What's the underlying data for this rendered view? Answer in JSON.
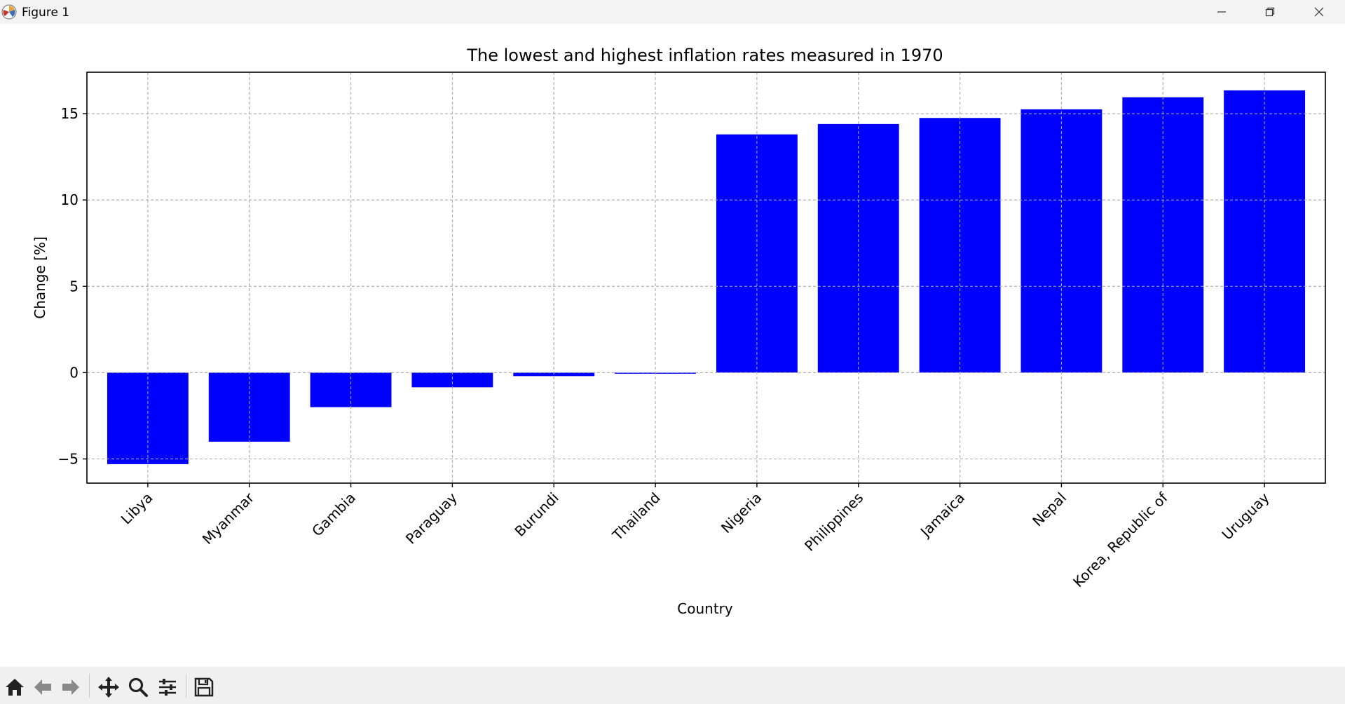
{
  "window": {
    "title": "Figure 1",
    "icons": [
      "matplotlib-logo-icon",
      "minimize-icon",
      "restore-icon",
      "close-icon"
    ]
  },
  "toolbar": {
    "buttons": [
      "home-icon",
      "back-arrow-icon",
      "forward-arrow-icon",
      "pan-icon",
      "zoom-icon",
      "configure-subplots-icon",
      "save-icon"
    ]
  },
  "colors": {
    "bar": "#0000ff",
    "grid": "#b0b0b0",
    "titlebar": "#f3f3f3",
    "toolbar": "#f0f0f0"
  },
  "chart_data": {
    "type": "bar",
    "title": "The lowest and highest inflation rates measured in 1970",
    "xlabel": "Country",
    "ylabel": "Change [%]",
    "categories": [
      "Libya",
      "Myanmar",
      "Gambia",
      "Paraguay",
      "Burundi",
      "Thailand",
      "Nigeria",
      "Philippines",
      "Jamaica",
      "Nepal",
      "Korea, Republic of",
      "Uruguay"
    ],
    "values": [
      -5.3,
      -4.0,
      -2.0,
      -0.85,
      -0.2,
      -0.05,
      13.8,
      14.4,
      14.75,
      15.25,
      15.95,
      16.35
    ],
    "ylim": [
      -6.4,
      17.4
    ],
    "yticks": [
      -5,
      0,
      5,
      10,
      15
    ],
    "ytick_labels": [
      "−5",
      "0",
      "5",
      "10",
      "15"
    ],
    "grid": true,
    "grid_style": "dashed"
  }
}
